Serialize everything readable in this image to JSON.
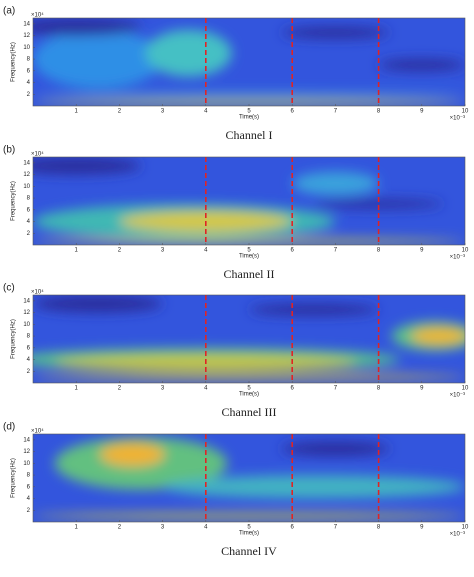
{
  "chart_data": [
    {
      "type": "spectrogram",
      "panel_label": "(a)",
      "caption": "Channel I",
      "xlabel": "Time(s)",
      "ylabel": "Frequency(Hz)",
      "x_exponent": "×10⁻³",
      "y_exponent": "×10⁴",
      "xlim": [
        0,
        10
      ],
      "ylim": [
        0,
        15
      ],
      "xticks": [
        1,
        2,
        3,
        4,
        5,
        6,
        7,
        8,
        9,
        10
      ],
      "yticks": [
        2,
        4,
        6,
        8,
        10,
        12,
        14
      ],
      "markers": [
        4,
        6,
        8
      ],
      "marker_color": "#e02424",
      "background": "#3355dd",
      "hotspots": [
        {
          "x": 1.5,
          "y": 8,
          "w": 3,
          "h": 10,
          "color": "#2f8fe6"
        },
        {
          "x": 3.6,
          "y": 9,
          "w": 2,
          "h": 8,
          "color": "#45c0c4"
        },
        {
          "x": 1,
          "y": 13.5,
          "w": 3,
          "h": 3,
          "color": "#2a2d9e"
        },
        {
          "x": 7,
          "y": 12.5,
          "w": 2.5,
          "h": 2,
          "color": "#2a2d9e"
        },
        {
          "x": 9,
          "y": 7,
          "w": 2,
          "h": 2,
          "color": "#2a2d9e"
        },
        {
          "x": 5,
          "y": 2,
          "w": 10,
          "h": 0.6,
          "color": "#3ab0d8"
        },
        {
          "x": 5,
          "y": 0.6,
          "w": 10,
          "h": 0.9,
          "color": "#cfd23c"
        }
      ]
    },
    {
      "type": "spectrogram",
      "panel_label": "(b)",
      "caption": "Channel II",
      "xlabel": "Time(s)",
      "ylabel": "Frequency(Hz)",
      "x_exponent": "×10⁻³",
      "y_exponent": "×10⁴",
      "xlim": [
        0,
        10
      ],
      "ylim": [
        0,
        15
      ],
      "xticks": [
        1,
        2,
        3,
        4,
        5,
        6,
        7,
        8,
        9,
        10
      ],
      "yticks": [
        2,
        4,
        6,
        8,
        10,
        12,
        14
      ],
      "markers": [
        4,
        6,
        8
      ],
      "marker_color": "#e02424",
      "background": "#3355dd",
      "hotspots": [
        {
          "x": 3.5,
          "y": 4,
          "w": 7,
          "h": 6,
          "color": "#3fb8b4"
        },
        {
          "x": 4,
          "y": 4,
          "w": 4,
          "h": 3.5,
          "color": "#d6c842"
        },
        {
          "x": 7,
          "y": 10.5,
          "w": 2,
          "h": 4,
          "color": "#3aa2dc"
        },
        {
          "x": 1,
          "y": 13.5,
          "w": 3,
          "h": 3,
          "color": "#2a2d9e"
        },
        {
          "x": 8,
          "y": 7,
          "w": 3,
          "h": 1.5,
          "color": "#2a2d9e"
        },
        {
          "x": 5,
          "y": 0.6,
          "w": 10,
          "h": 0.9,
          "color": "#d6cf3a"
        }
      ]
    },
    {
      "type": "spectrogram",
      "panel_label": "(c)",
      "caption": "Channel III",
      "xlabel": "Time(s)",
      "ylabel": "Frequency(Hz)",
      "x_exponent": "×10⁻³",
      "y_exponent": "×10⁴",
      "xlim": [
        0,
        10
      ],
      "ylim": [
        0,
        15
      ],
      "xticks": [
        1,
        2,
        3,
        4,
        5,
        6,
        7,
        8,
        9,
        10
      ],
      "yticks": [
        2,
        4,
        6,
        8,
        10,
        12,
        14
      ],
      "markers": [
        4,
        6,
        8
      ],
      "marker_color": "#e02424",
      "background": "#3355dd",
      "hotspots": [
        {
          "x": 4,
          "y": 4,
          "w": 9,
          "h": 4,
          "color": "#58c08e"
        },
        {
          "x": 4,
          "y": 3.5,
          "w": 7,
          "h": 2.5,
          "color": "#c9c63e"
        },
        {
          "x": 9.3,
          "y": 8,
          "w": 2,
          "h": 5,
          "color": "#5cc08a"
        },
        {
          "x": 9.4,
          "y": 8,
          "w": 1.3,
          "h": 3,
          "color": "#eab532"
        },
        {
          "x": 1.5,
          "y": 13.5,
          "w": 3,
          "h": 3,
          "color": "#2a2d9e"
        },
        {
          "x": 6.5,
          "y": 12.5,
          "w": 3,
          "h": 2,
          "color": "#2a2d9e"
        },
        {
          "x": 5,
          "y": 1,
          "w": 10,
          "h": 1,
          "color": "#e0c232"
        }
      ]
    },
    {
      "type": "spectrogram",
      "panel_label": "(d)",
      "caption": "Channel IV",
      "xlabel": "Time(s)",
      "ylabel": "Frequency(Hz)",
      "x_exponent": "×10⁻³",
      "y_exponent": "×10⁴",
      "xlim": [
        0,
        10
      ],
      "ylim": [
        0,
        15
      ],
      "xticks": [
        1,
        2,
        3,
        4,
        5,
        6,
        7,
        8,
        9,
        10
      ],
      "yticks": [
        2,
        4,
        6,
        8,
        10,
        12,
        14
      ],
      "markers": [
        4,
        6,
        8
      ],
      "marker_color": "#e02424",
      "background": "#3355dd",
      "hotspots": [
        {
          "x": 2.5,
          "y": 10,
          "w": 4,
          "h": 9,
          "color": "#62c080"
        },
        {
          "x": 2.3,
          "y": 11.5,
          "w": 1.5,
          "h": 4,
          "color": "#f0b232"
        },
        {
          "x": 6.5,
          "y": 6,
          "w": 7,
          "h": 4,
          "color": "#42b2c2"
        },
        {
          "x": 7,
          "y": 12.5,
          "w": 2.5,
          "h": 2.5,
          "color": "#2a2d9e"
        },
        {
          "x": 5,
          "y": 1,
          "w": 10,
          "h": 1,
          "color": "#d2c83e"
        }
      ]
    }
  ]
}
